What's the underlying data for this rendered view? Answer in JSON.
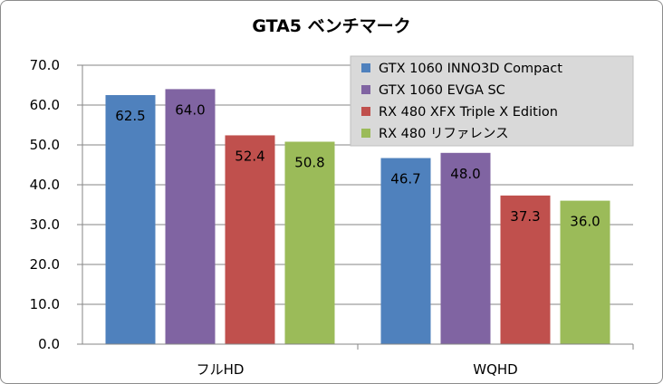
{
  "chart_data": {
    "type": "bar",
    "title": "GTA5 ベンチマーク",
    "categories": [
      "フルHD",
      "WQHD"
    ],
    "series": [
      {
        "name": "GTX 1060 INNO3D Compact",
        "values": [
          62.5,
          46.7
        ],
        "color": "#4f81bd"
      },
      {
        "name": "GTX 1060 EVGA SC",
        "values": [
          64.0,
          48.0
        ],
        "color": "#8064a2"
      },
      {
        "name": "RX 480 XFX Triple X Edition",
        "values": [
          52.4,
          37.3
        ],
        "color": "#c0504d"
      },
      {
        "name": "RX 480 リファレンス",
        "values": [
          50.8,
          36.0
        ],
        "color": "#9bbb59"
      }
    ],
    "ylim": [
      0,
      70
    ],
    "yticks": [
      0,
      10,
      20,
      30,
      40,
      50,
      60,
      70
    ],
    "ytick_labels": [
      "0.0",
      "10.0",
      "20.0",
      "30.0",
      "40.0",
      "50.0",
      "60.0",
      "70.0"
    ],
    "value_labels": [
      [
        "62.5",
        "46.7"
      ],
      [
        "64.0",
        "48.0"
      ],
      [
        "52.4",
        "37.3"
      ],
      [
        "50.8",
        "36.0"
      ]
    ],
    "grid": true,
    "legend_position": "top-right",
    "legend_background": "#d9d9d9",
    "gridline_color": "#868686"
  }
}
